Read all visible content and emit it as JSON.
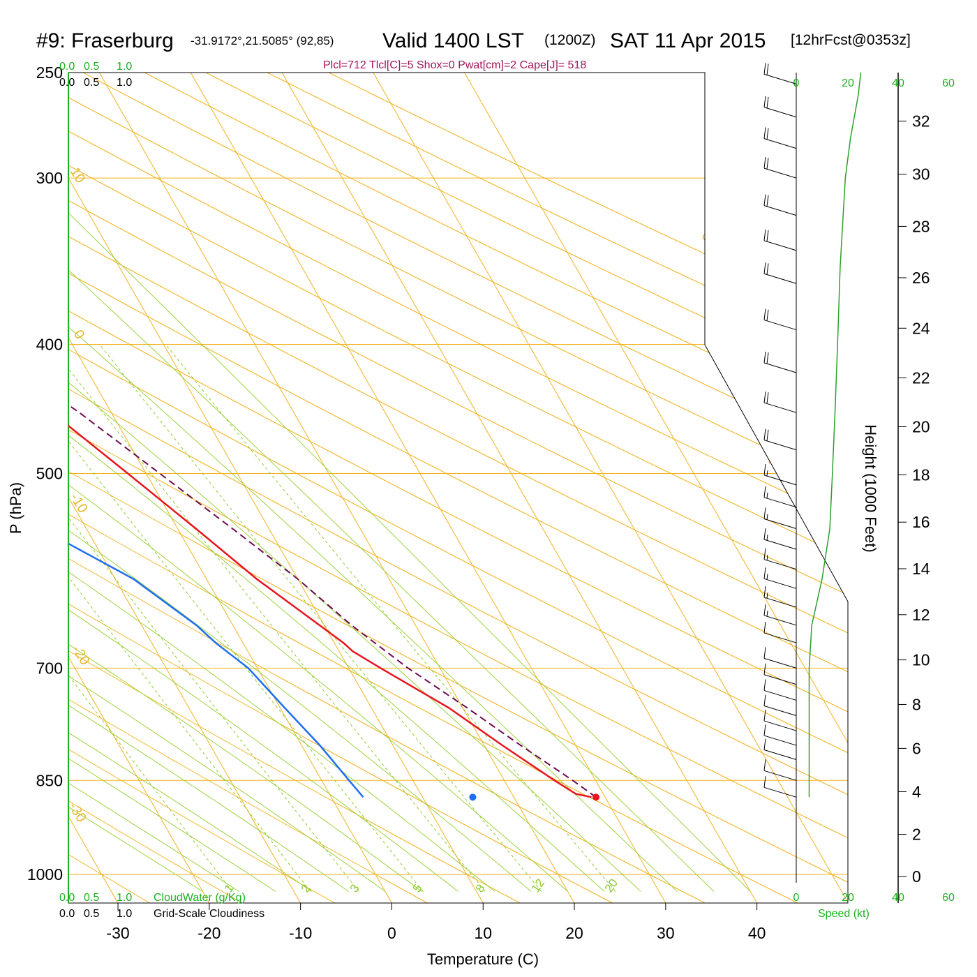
{
  "header": {
    "station": "#9: Fraserburg",
    "coords": "-31.9172°,21.5085° (92,85)",
    "valid": "Valid 1400 LST",
    "utc": "(1200Z)",
    "date": "SAT 11 Apr 2015",
    "forecast": "[12hrFcst@0353z]",
    "indices": "Plcl=712 Tlcl[C]=5 Shox=0 Pwat[cm]=2 Cape[J]= 518"
  },
  "colors": {
    "temperature": "#e8141e",
    "dewpoint": "#1e6ef0",
    "parcel": "#6e0a50",
    "isobar_isotherm": "#f2b21c",
    "dry_adiabat": "#f2b21c",
    "moist_adiabat": "#9cd23c",
    "mixing_ratio": "#8ccc2a",
    "cloud_scale": "#1cb01c",
    "wind_speed": "#2ca02c",
    "wind_barb": "#000000"
  },
  "labels": {
    "x_axis_title": "Temperature (C)",
    "y_axis_title": "P (hPa)",
    "height_axis_title": "Height (1000 Feet)",
    "cloud_water": "CloudWater (g/Kg)",
    "cloudiness": "Grid-Scale Cloudiness",
    "speed": "Speed (kt)",
    "cloud_scale_ticks": [
      "0.0",
      "0.5",
      "1.0"
    ],
    "speed_ticks": [
      "0",
      "20",
      "40",
      "60"
    ],
    "isotherm_labels": [
      "10",
      "0",
      "-10",
      "-20",
      "-30",
      "0",
      "10",
      "20",
      "30"
    ],
    "mixing_ratio_labels": [
      "1",
      "2",
      "3",
      "5",
      "8",
      "12",
      "20"
    ]
  },
  "chart_data": {
    "type": "skew-t",
    "pressure_ticks": [
      250,
      300,
      400,
      500,
      700,
      850,
      1000
    ],
    "temperature_ticks": [
      -30,
      -20,
      -10,
      0,
      10,
      20,
      30,
      40
    ],
    "height_ticks_kft": [
      0,
      2,
      4,
      6,
      8,
      10,
      12,
      14,
      16,
      18,
      20,
      22,
      24,
      26,
      28,
      30,
      32
    ],
    "xlim": [
      -33,
      47
    ],
    "plim": [
      1030,
      250
    ],
    "temperature_profile": [
      [
        875,
        28.5
      ],
      [
        870,
        27
      ],
      [
        850,
        25.5
      ],
      [
        800,
        22
      ],
      [
        750,
        18.5
      ],
      [
        700,
        13.5
      ],
      [
        680,
        11.5
      ],
      [
        670,
        11
      ],
      [
        650,
        9.5
      ],
      [
        600,
        5.5
      ],
      [
        550,
        2
      ],
      [
        500,
        -2
      ],
      [
        450,
        -6.5
      ],
      [
        400,
        -12
      ],
      [
        350,
        -18.5
      ],
      [
        300,
        -27
      ],
      [
        270,
        -33
      ],
      [
        250,
        -37
      ]
    ],
    "dewpoint_profile": [
      [
        875,
        3.5
      ],
      [
        850,
        3
      ],
      [
        800,
        2
      ],
      [
        750,
        0.5
      ],
      [
        700,
        -1
      ],
      [
        670,
        -3
      ],
      [
        650,
        -4
      ],
      [
        600,
        -8
      ],
      [
        550,
        -15
      ],
      [
        500,
        -20
      ],
      [
        450,
        -24
      ],
      [
        400,
        -32
      ],
      [
        350,
        -38
      ],
      [
        320,
        -43
      ],
      [
        305,
        -44
      ],
      [
        285,
        -51
      ],
      [
        250,
        -59
      ]
    ],
    "parcel_profile": [
      [
        875,
        29
      ],
      [
        850,
        27.5
      ],
      [
        800,
        24
      ],
      [
        750,
        20.5
      ],
      [
        712,
        17.5
      ],
      [
        700,
        16.5
      ],
      [
        650,
        13
      ],
      [
        600,
        10
      ],
      [
        550,
        6
      ],
      [
        500,
        1.5
      ],
      [
        450,
        -3.5
      ],
      [
        400,
        -10
      ],
      [
        350,
        -17
      ],
      [
        305,
        -25
      ]
    ],
    "surface_markers": {
      "temperature": 29,
      "dewpoint": 15.5,
      "pressure": 875
    },
    "wind_profile_kt": [
      [
        875,
        5
      ],
      [
        850,
        5
      ],
      [
        800,
        5
      ],
      [
        700,
        5
      ],
      [
        650,
        6
      ],
      [
        600,
        10
      ],
      [
        550,
        13
      ],
      [
        500,
        14
      ],
      [
        450,
        15
      ],
      [
        400,
        16
      ],
      [
        350,
        17
      ],
      [
        300,
        19
      ],
      [
        280,
        21
      ],
      [
        260,
        24
      ],
      [
        250,
        25
      ]
    ],
    "wind_barbs_kt": [
      [
        875,
        10,
        5
      ],
      [
        850,
        10,
        5
      ],
      [
        820,
        10,
        5
      ],
      [
        800,
        10,
        5
      ],
      [
        780,
        10,
        5
      ],
      [
        760,
        10,
        5
      ],
      [
        740,
        10,
        5
      ],
      [
        720,
        10,
        5
      ],
      [
        700,
        10,
        5
      ],
      [
        670,
        10,
        5
      ],
      [
        650,
        15,
        10
      ],
      [
        630,
        15,
        10
      ],
      [
        610,
        15,
        10
      ],
      [
        590,
        15,
        10
      ],
      [
        570,
        15,
        10
      ],
      [
        550,
        15,
        10
      ],
      [
        530,
        15,
        10
      ],
      [
        510,
        15,
        10
      ],
      [
        480,
        20,
        15
      ],
      [
        450,
        20,
        15
      ],
      [
        420,
        20,
        15
      ],
      [
        390,
        20,
        15
      ],
      [
        360,
        20,
        15
      ],
      [
        340,
        20,
        15
      ],
      [
        320,
        20,
        15
      ],
      [
        300,
        20,
        15
      ],
      [
        285,
        20,
        15
      ],
      [
        270,
        20,
        15
      ],
      [
        255,
        20,
        15
      ]
    ]
  }
}
